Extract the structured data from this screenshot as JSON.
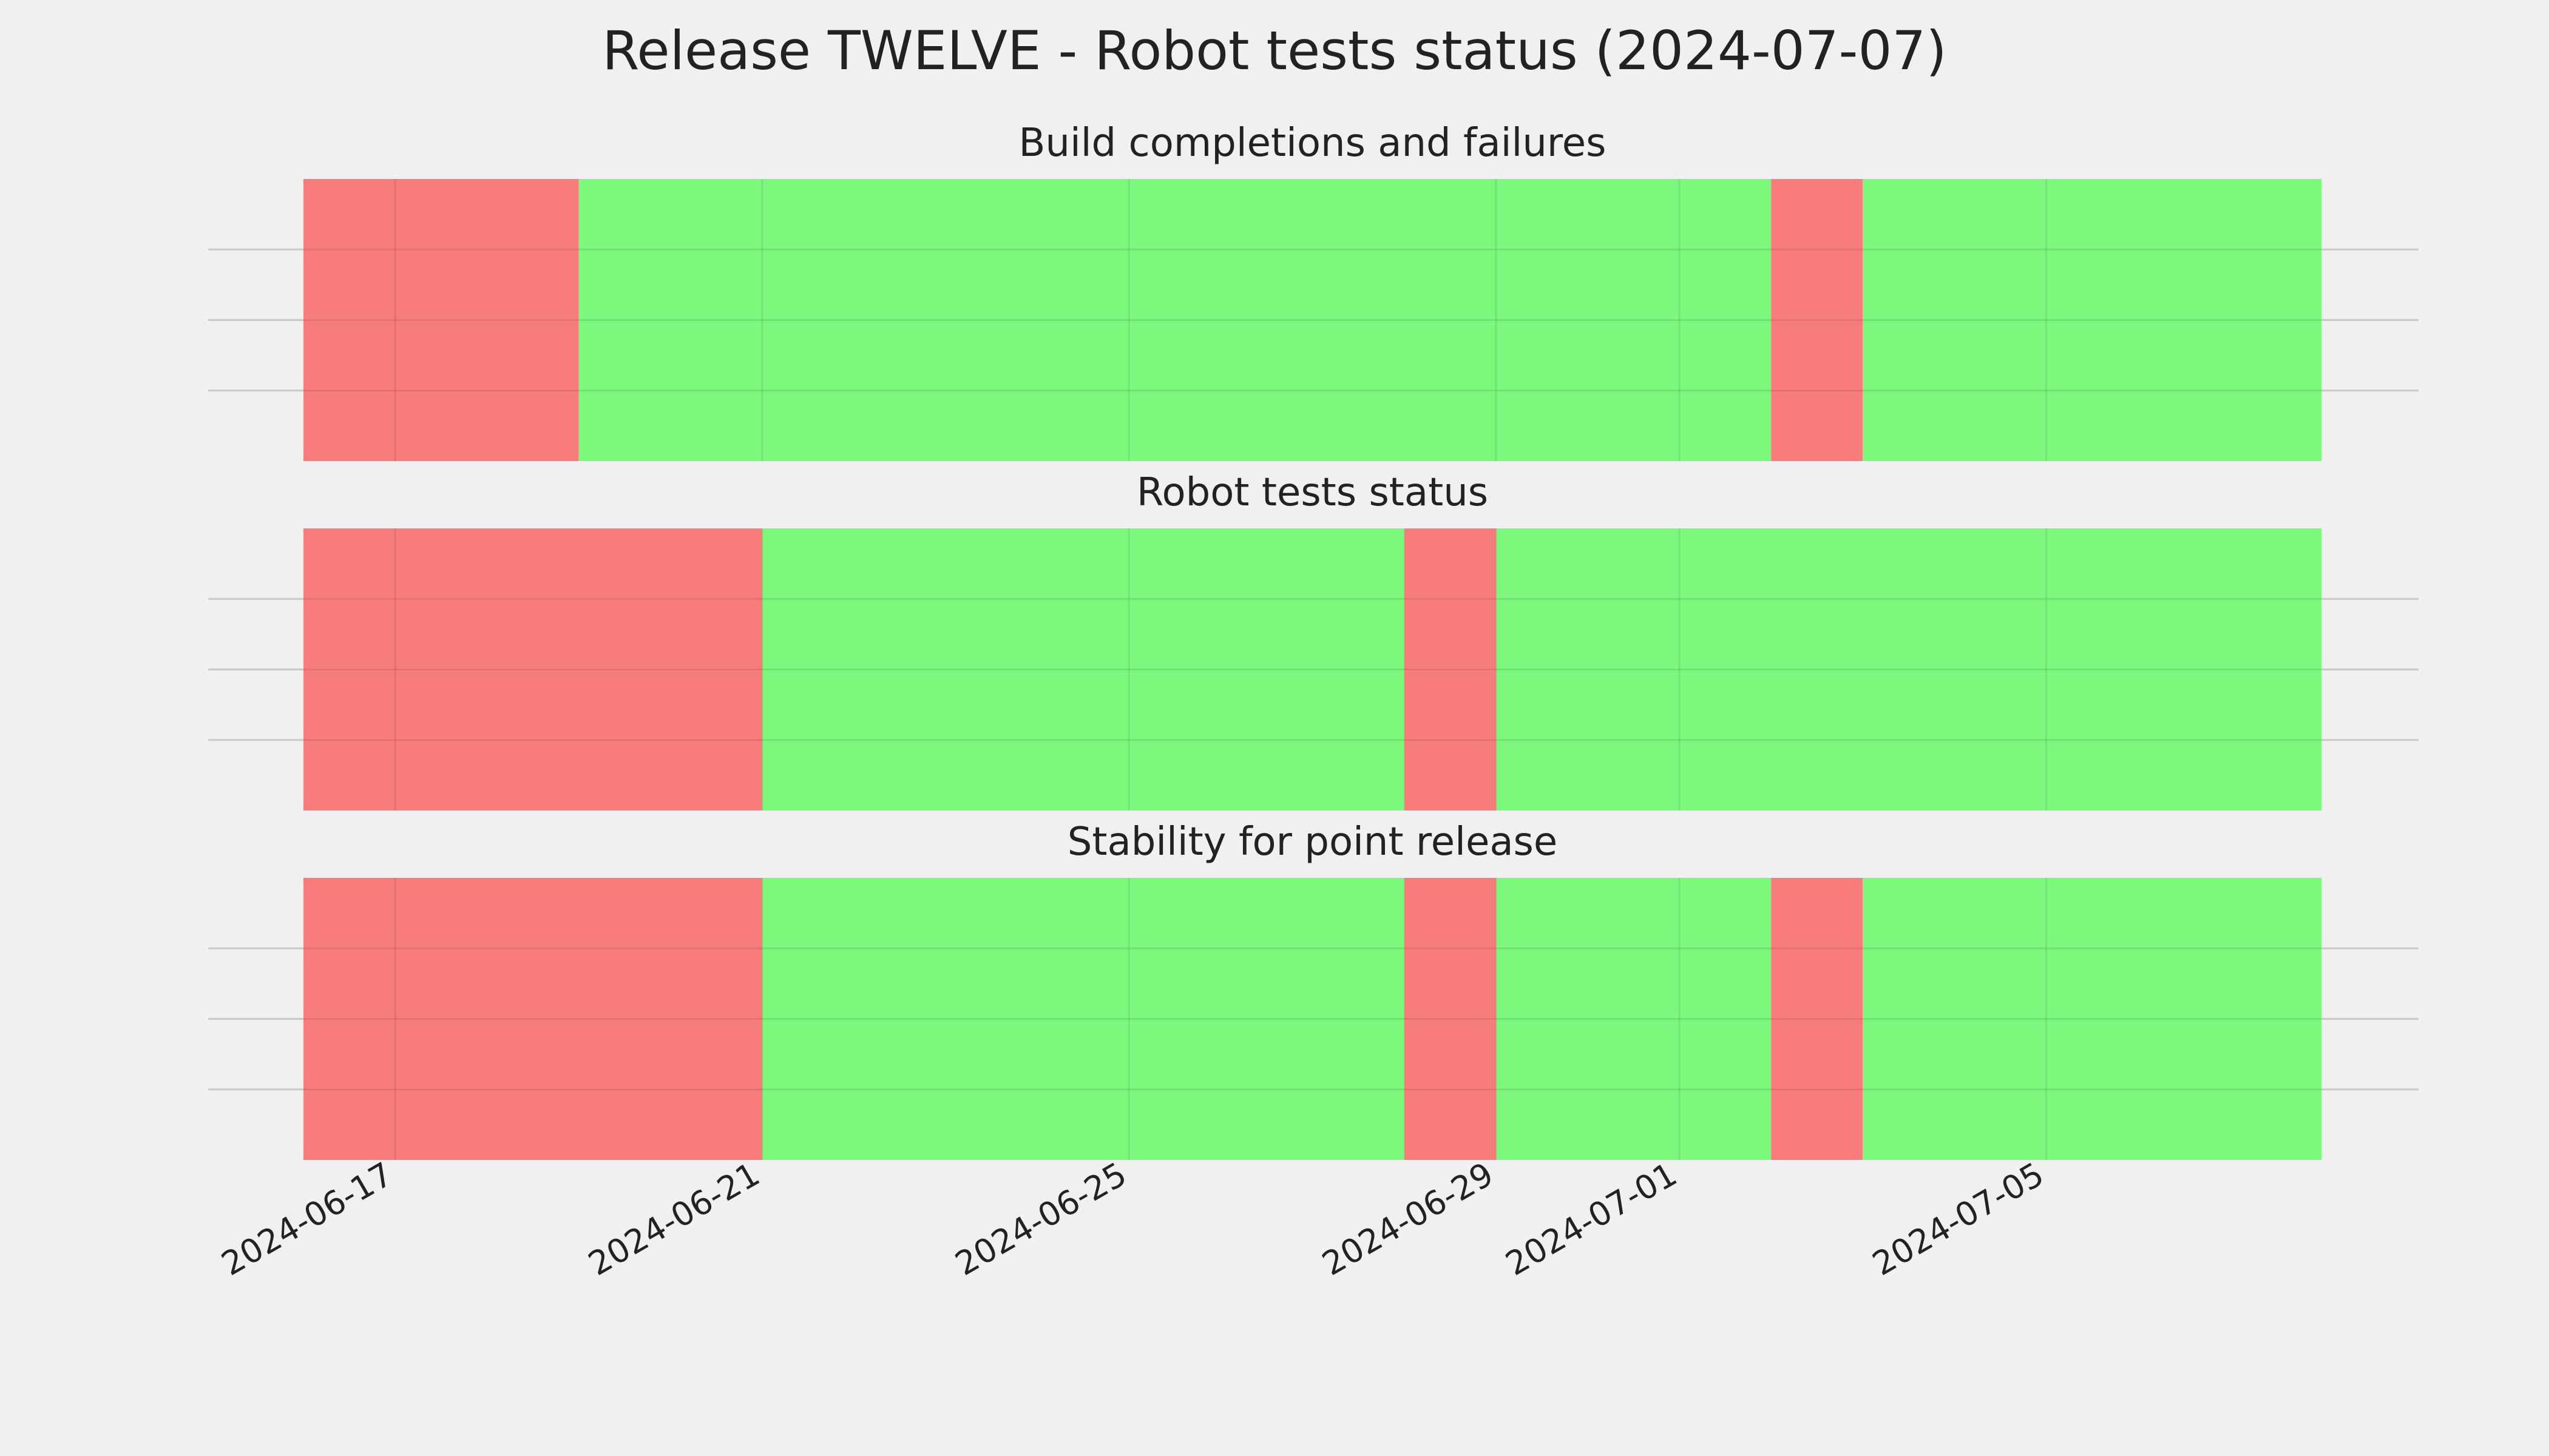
{
  "chart_data": {
    "type": "timeline",
    "title": "Release TWELVE - Robot tests status (2024-07-07)",
    "x_tick_labels": [
      "2024-06-17",
      "2024-06-21",
      "2024-06-25",
      "2024-06-29",
      "2024-07-01",
      "2024-07-05"
    ],
    "xlim": [
      "2024-06-16",
      "2024-07-08"
    ],
    "grid": true,
    "colors": {
      "fail": "#f87878",
      "pass": "#78f878"
    },
    "panels": [
      {
        "title": "Build completions and failures",
        "segments": [
          {
            "start": "2024-06-16",
            "end": "2024-06-19",
            "status": "fail"
          },
          {
            "start": "2024-06-19",
            "end": "2024-07-02",
            "status": "pass"
          },
          {
            "start": "2024-07-02",
            "end": "2024-07-03",
            "status": "fail"
          },
          {
            "start": "2024-07-03",
            "end": "2024-07-08",
            "status": "pass"
          }
        ]
      },
      {
        "title": "Robot tests status",
        "segments": [
          {
            "start": "2024-06-16",
            "end": "2024-06-21",
            "status": "fail"
          },
          {
            "start": "2024-06-21",
            "end": "2024-06-28",
            "status": "pass"
          },
          {
            "start": "2024-06-28",
            "end": "2024-06-29",
            "status": "fail"
          },
          {
            "start": "2024-06-29",
            "end": "2024-07-08",
            "status": "pass"
          }
        ]
      },
      {
        "title": "Stability for point release",
        "segments": [
          {
            "start": "2024-06-16",
            "end": "2024-06-21",
            "status": "fail"
          },
          {
            "start": "2024-06-21",
            "end": "2024-06-28",
            "status": "pass"
          },
          {
            "start": "2024-06-28",
            "end": "2024-06-29",
            "status": "fail"
          },
          {
            "start": "2024-06-29",
            "end": "2024-07-02",
            "status": "pass"
          },
          {
            "start": "2024-07-02",
            "end": "2024-07-03",
            "status": "fail"
          },
          {
            "start": "2024-07-03",
            "end": "2024-07-08",
            "status": "pass"
          }
        ]
      }
    ]
  }
}
